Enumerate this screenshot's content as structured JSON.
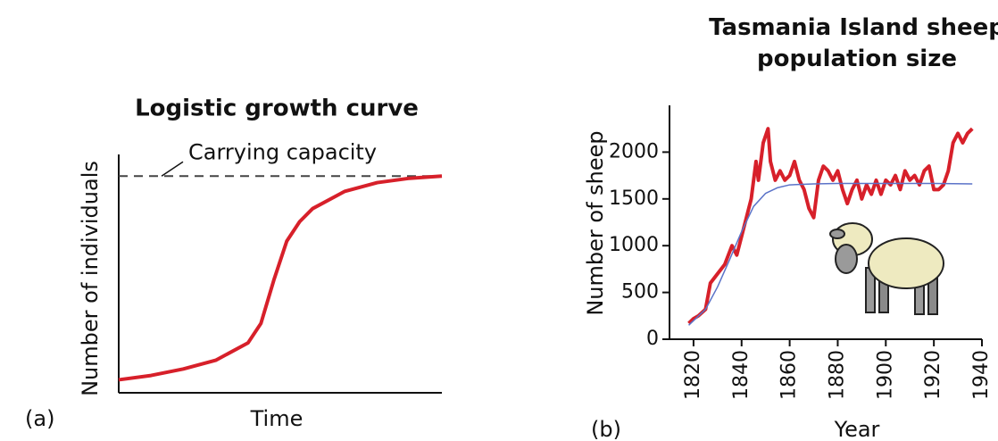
{
  "chart_data": [
    {
      "type": "line",
      "panel_label": "(a)",
      "title": "Logistic growth curve",
      "x_label": "Time",
      "y_label": "Number of individuals",
      "annotation": "Carrying capacity",
      "carrying_capacity": 100,
      "xlim": [
        0,
        10
      ],
      "ylim": [
        0,
        110
      ],
      "series": [
        {
          "color": "#d7202a",
          "x": [
            0,
            1,
            2,
            3,
            4,
            4.4,
            4.8,
            5.2,
            5.6,
            6,
            7,
            8,
            9,
            10
          ],
          "values": [
            6,
            8,
            11,
            15,
            23,
            32,
            52,
            70,
            79,
            85,
            93,
            97,
            99,
            100
          ]
        }
      ]
    },
    {
      "type": "line",
      "panel_label": "(b)",
      "title": "Tasmania Island sheep population size",
      "x_label": "Year",
      "y_label": "Number of sheep",
      "xlim": [
        1810,
        1940
      ],
      "ylim": [
        0,
        2500
      ],
      "xticks": [
        1820,
        1840,
        1860,
        1880,
        1900,
        1920,
        1940
      ],
      "yticks": [
        0,
        500,
        1000,
        1500,
        2000
      ],
      "series": [
        {
          "color": "#d7202a",
          "x": [
            1818,
            1820,
            1822,
            1825,
            1827,
            1830,
            1833,
            1836,
            1838,
            1840,
            1842,
            1844,
            1846,
            1847,
            1849,
            1851,
            1852,
            1854,
            1856,
            1858,
            1860,
            1862,
            1864,
            1866,
            1868,
            1870,
            1872,
            1874,
            1876,
            1878,
            1880,
            1882,
            1884,
            1886,
            1888,
            1890,
            1892,
            1894,
            1896,
            1898,
            1900,
            1902,
            1904,
            1906,
            1908,
            1910,
            1912,
            1914,
            1916,
            1918,
            1920,
            1922,
            1924,
            1926,
            1928,
            1930,
            1932,
            1934,
            1936
          ],
          "values": [
            170,
            220,
            250,
            320,
            600,
            700,
            800,
            1000,
            900,
            1100,
            1300,
            1500,
            1900,
            1700,
            2100,
            2250,
            1900,
            1700,
            1800,
            1700,
            1750,
            1900,
            1700,
            1600,
            1400,
            1300,
            1700,
            1850,
            1800,
            1700,
            1800,
            1600,
            1450,
            1600,
            1700,
            1500,
            1650,
            1550,
            1700,
            1550,
            1700,
            1650,
            1750,
            1600,
            1800,
            1700,
            1750,
            1650,
            1800,
            1850,
            1600,
            1600,
            1650,
            1800,
            2100,
            2200,
            2100,
            2200,
            2250
          ]
        },
        {
          "color": "#5b73c8",
          "x": [
            1818,
            1825,
            1830,
            1835,
            1840,
            1845,
            1850,
            1855,
            1860,
            1870,
            1880,
            1900,
            1920,
            1936
          ],
          "values": [
            150,
            320,
            560,
            850,
            1150,
            1420,
            1560,
            1620,
            1650,
            1660,
            1665,
            1665,
            1665,
            1660
          ]
        }
      ]
    }
  ]
}
